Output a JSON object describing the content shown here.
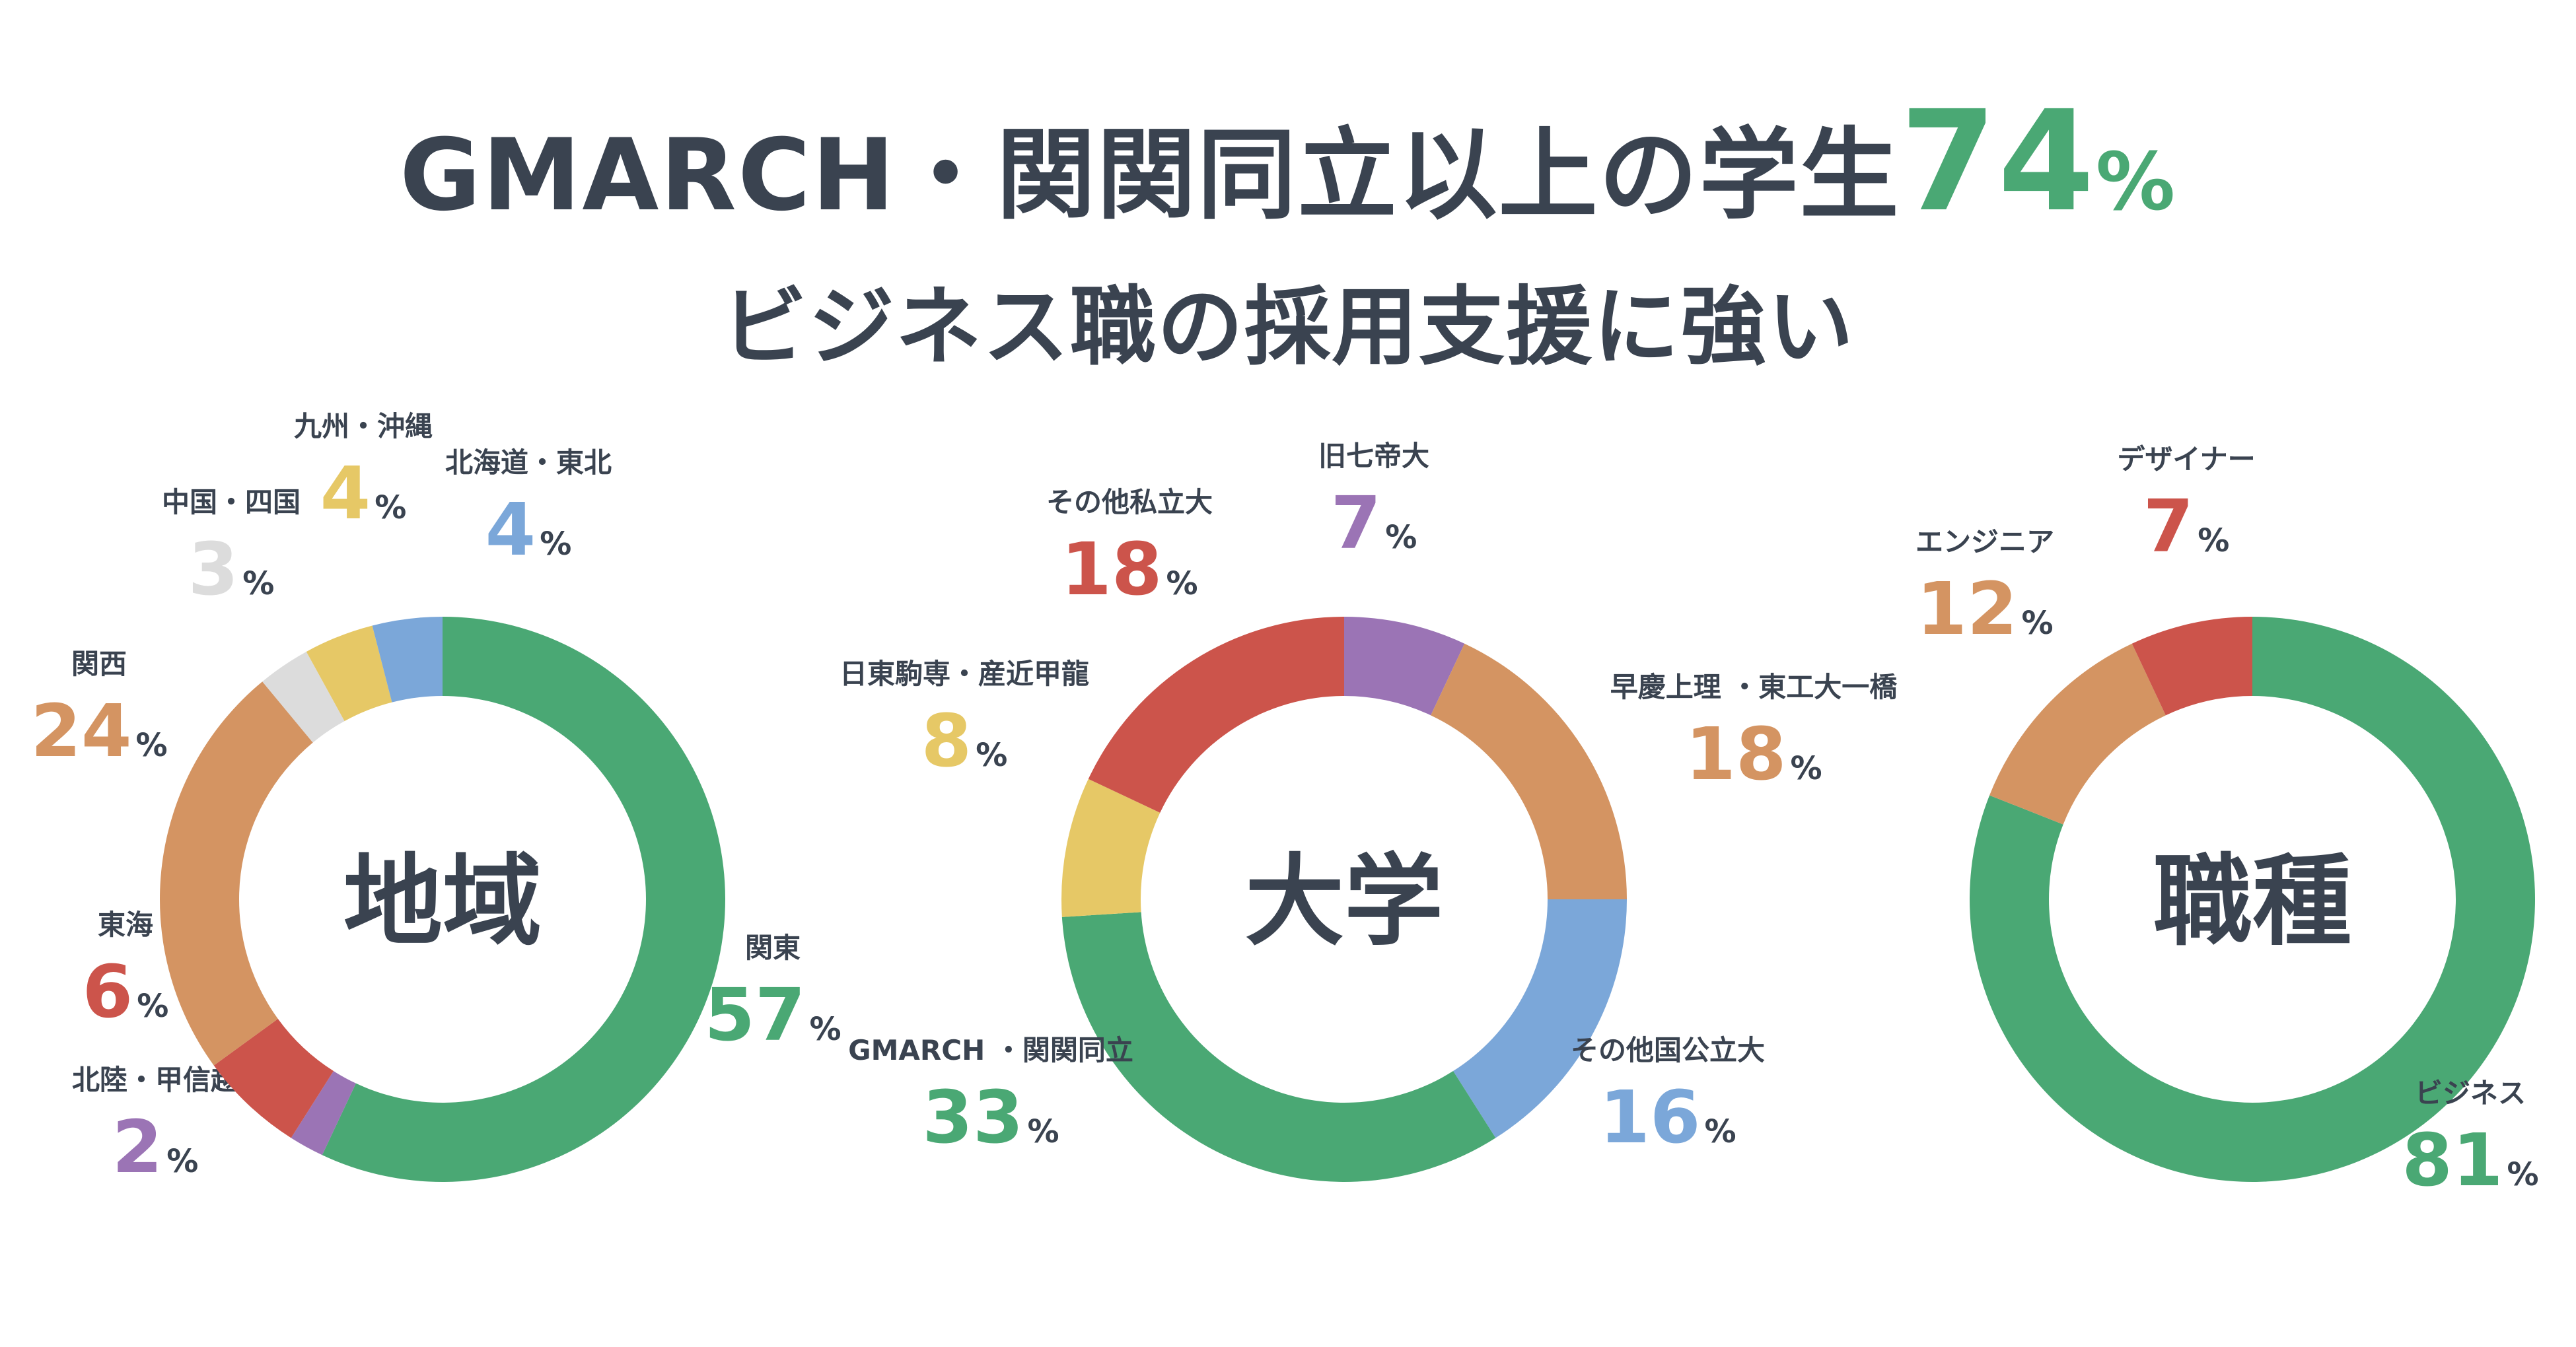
{
  "title": {
    "line1_prefix": "GMARCH・関関同立以上の学生",
    "line1_value": "74",
    "line1_unit": "%",
    "line2": "ビジネス職の採用支援に強い"
  },
  "colors": {
    "text": "#3a4350",
    "green": "#4aa874",
    "orange": "#d49462",
    "red": "#cc544b",
    "purple": "#9b74b5",
    "blue": "#7ba7d9",
    "yellow": "#e6c866",
    "gray": "#dcdcdc"
  },
  "chart_data": [
    {
      "type": "pie",
      "center_label": "地域",
      "slices": [
        {
          "label": "関東",
          "value": 57,
          "color": "#4aa874"
        },
        {
          "label": "北陸・甲信越",
          "value": 2,
          "color": "#9b74b5"
        },
        {
          "label": "東海",
          "value": 6,
          "color": "#cc544b"
        },
        {
          "label": "関西",
          "value": 24,
          "color": "#d49462"
        },
        {
          "label": "中国・四国",
          "value": 3,
          "color": "#dcdcdc"
        },
        {
          "label": "九州・沖縄",
          "value": 4,
          "color": "#e6c866"
        },
        {
          "label": "北海道・東北",
          "value": 4,
          "color": "#7ba7d9"
        }
      ]
    },
    {
      "type": "pie",
      "center_label": "大学",
      "slices": [
        {
          "label": "旧七帝大",
          "value": 7,
          "color": "#9b74b5"
        },
        {
          "label": "早慶上理 ・東工大一橋",
          "value": 18,
          "color": "#d49462"
        },
        {
          "label": "その他国公立大",
          "value": 16,
          "color": "#7ba7d9"
        },
        {
          "label": "GMARCH ・関関同立",
          "value": 33,
          "color": "#4aa874"
        },
        {
          "label": "日東駒専・産近甲龍",
          "value": 8,
          "color": "#e6c866"
        },
        {
          "label": "その他私立大",
          "value": 18,
          "color": "#cc544b"
        }
      ]
    },
    {
      "type": "pie",
      "center_label": "職種",
      "slices": [
        {
          "label": "ビジネス",
          "value": 81,
          "color": "#4aa874"
        },
        {
          "label": "エンジニア",
          "value": 12,
          "color": "#d49462"
        },
        {
          "label": "デザイナー",
          "value": 7,
          "color": "#cc544b"
        }
      ]
    }
  ]
}
